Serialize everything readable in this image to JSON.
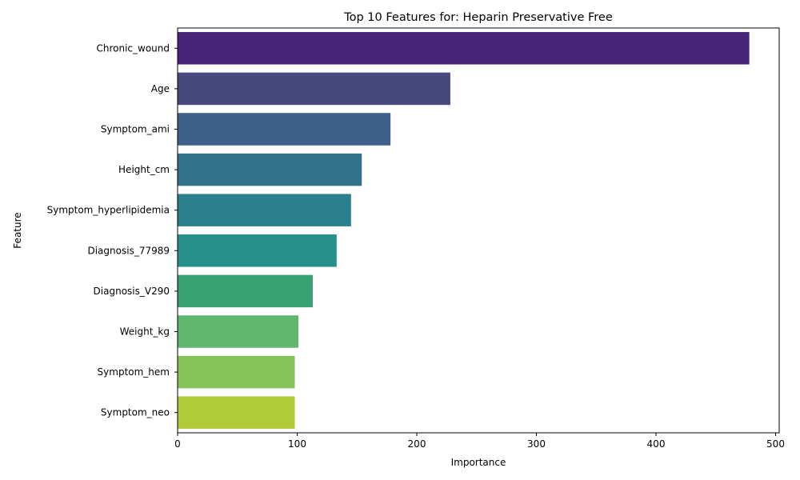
{
  "chart_data": {
    "type": "bar",
    "orientation": "horizontal",
    "title": "Top 10 Features for: Heparin Preservative Free",
    "xlabel": "Importance",
    "ylabel": "Feature",
    "xlim": [
      0,
      503
    ],
    "xticks": [
      0,
      100,
      200,
      300,
      400,
      500
    ],
    "grid": false,
    "categories": [
      "Chronic_wound",
      "Age",
      "Symptom_ami",
      "Height_cm",
      "Symptom_hyperlipidemia",
      "Diagnosis_77989",
      "Diagnosis_V290",
      "Weight_kg",
      "Symptom_hem",
      "Symptom_neo"
    ],
    "values": [
      478,
      228,
      178,
      154,
      145,
      133,
      113,
      101,
      98,
      98
    ],
    "colors": [
      "#482576",
      "#46487e",
      "#3e5f8a",
      "#35728c",
      "#2a808d",
      "#26908a",
      "#38a272",
      "#5fb86d",
      "#86c45a",
      "#b1ca37"
    ]
  }
}
